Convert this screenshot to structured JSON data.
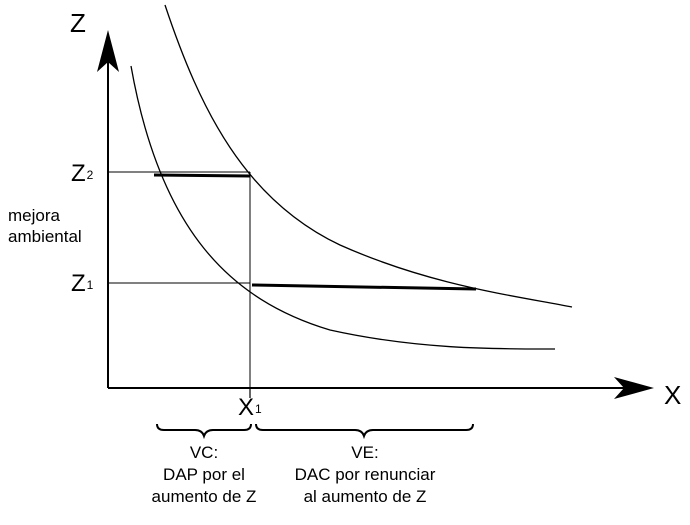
{
  "axes": {
    "y_label": "Z",
    "x_label": "X"
  },
  "ticks": {
    "z2_main": "Z",
    "z2_sub": "2",
    "z1_main": "Z",
    "z1_sub": "1",
    "x1_main": "X",
    "x1_sub": "1"
  },
  "side_note": {
    "line1": "mejora",
    "line2": "ambiental"
  },
  "braces": {
    "vc": {
      "title": "VC:",
      "line1": "DAP por el",
      "line2": "aumento de Z"
    },
    "ve": {
      "title": "VE:",
      "line1": "DAC por renunciar",
      "line2": "al aumento de Z"
    }
  },
  "colors": {
    "ink": "#000000",
    "background": "#ffffff"
  }
}
